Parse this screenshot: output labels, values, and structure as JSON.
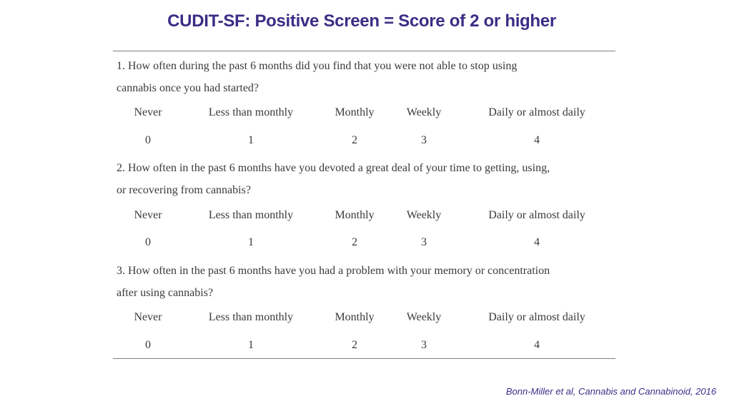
{
  "title": "CUDIT-SF: Positive Screen = Score of 2 or higher",
  "questions": [
    {
      "line1": "1.  How often during the past 6 months did you find that you were not able to stop using",
      "line2": "cannabis once you had started?"
    },
    {
      "line1": "2.  How often in the past 6 months have you devoted a great deal of your time to getting, using,",
      "line2": "or recovering from cannabis?"
    },
    {
      "line1": "3.  How often in the past 6 months have you had a problem with your memory or concentration",
      "line2": "after using cannabis?"
    }
  ],
  "options": [
    "Never",
    "Less than monthly",
    "Monthly",
    "Weekly",
    "Daily or almost daily"
  ],
  "scores": [
    "0",
    "1",
    "2",
    "3",
    "4"
  ],
  "citation": "Bonn-Miller et al, Cannabis and Cannabinoid, 2016"
}
